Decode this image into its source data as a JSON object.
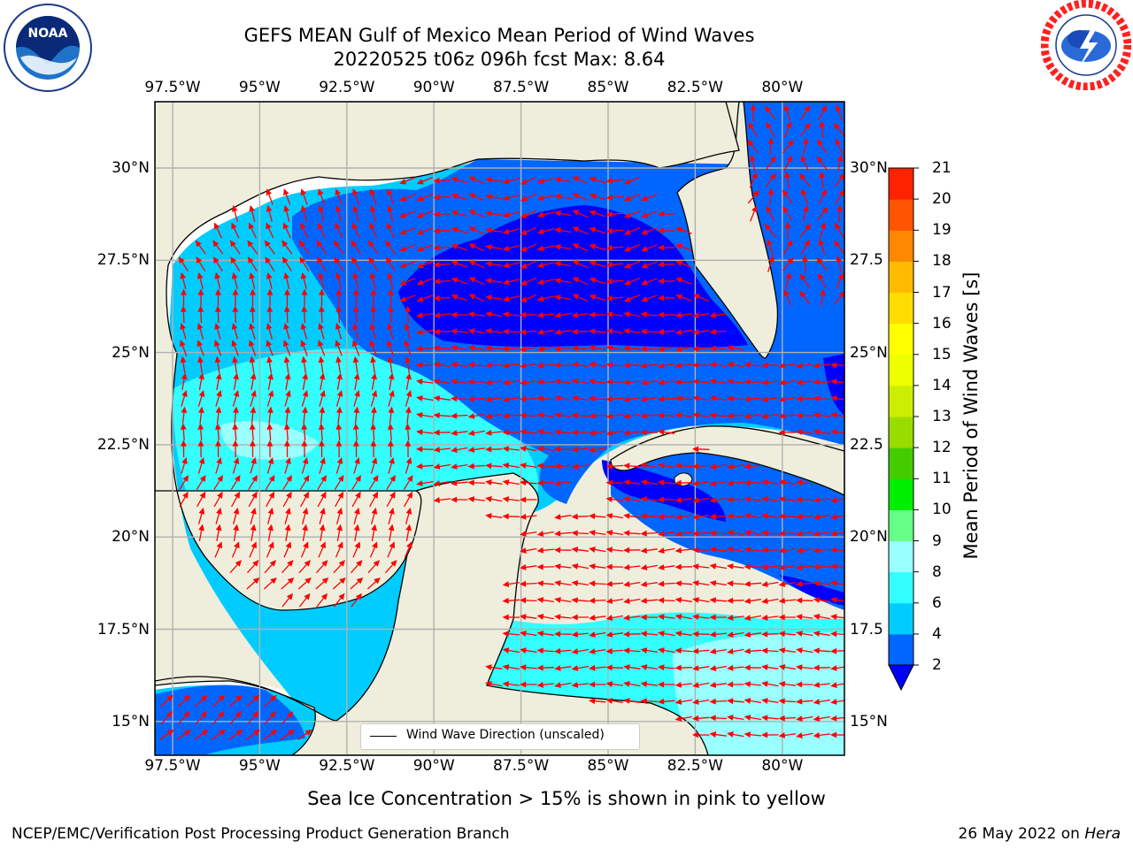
{
  "title_line1": "GEFS MEAN Gulf of Mexico Mean Period of Wind Waves",
  "title_line2": "20220525 t06z 096h fcst   Max: 8.64",
  "logos": {
    "left": "noaa-logo",
    "right": "national-weather-service-logo",
    "left_text": "NOAA",
    "right_text": "NATIONAL WEATHER SERVICE"
  },
  "map": {
    "lon_ticks": [
      "97.5°W",
      "95°W",
      "92.5°W",
      "90°W",
      "87.5°W",
      "85°W",
      "82.5°W",
      "80°W"
    ],
    "lat_ticks_left": [
      "30°N",
      "27.5°N",
      "25°N",
      "22.5°N",
      "20°N",
      "17.5°N",
      "15°N"
    ],
    "lat_ticks_right": [
      "30°N",
      "27.5",
      "25°N",
      "22.5",
      "20°N",
      "17.5",
      "15°N"
    ],
    "colors": {
      "land": "#efeedd",
      "ocean_white": "#ffffff",
      "grid": "#b0b0b0",
      "arrow": "#ff0000"
    }
  },
  "colorbar": {
    "label": "Mean Period of Wind Waves [s]",
    "ticks": [
      "2",
      "4",
      "6",
      "8",
      "9",
      "10",
      "11",
      "12",
      "13",
      "14",
      "15",
      "16",
      "17",
      "18",
      "19",
      "20",
      "21"
    ],
    "under_color": "#0000ff",
    "colors": [
      "#0066ff",
      "#00ccff",
      "#33ffff",
      "#99ffff",
      "#66ff88",
      "#00ee00",
      "#44cc00",
      "#99dd00",
      "#ccee00",
      "#eeff00",
      "#ffff00",
      "#ffdd00",
      "#ffbb00",
      "#ff8800",
      "#ff5500",
      "#ff2200"
    ]
  },
  "legend": {
    "label": "Wind Wave Direction (unscaled)"
  },
  "ice_note": "Sea Ice Concentration > 15% is shown in pink to yellow",
  "footer_left": "NCEP/EMC/Verification Post Processing Product Generation Branch",
  "footer_date": "26 May 2022 on",
  "footer_machine": "Hera"
}
